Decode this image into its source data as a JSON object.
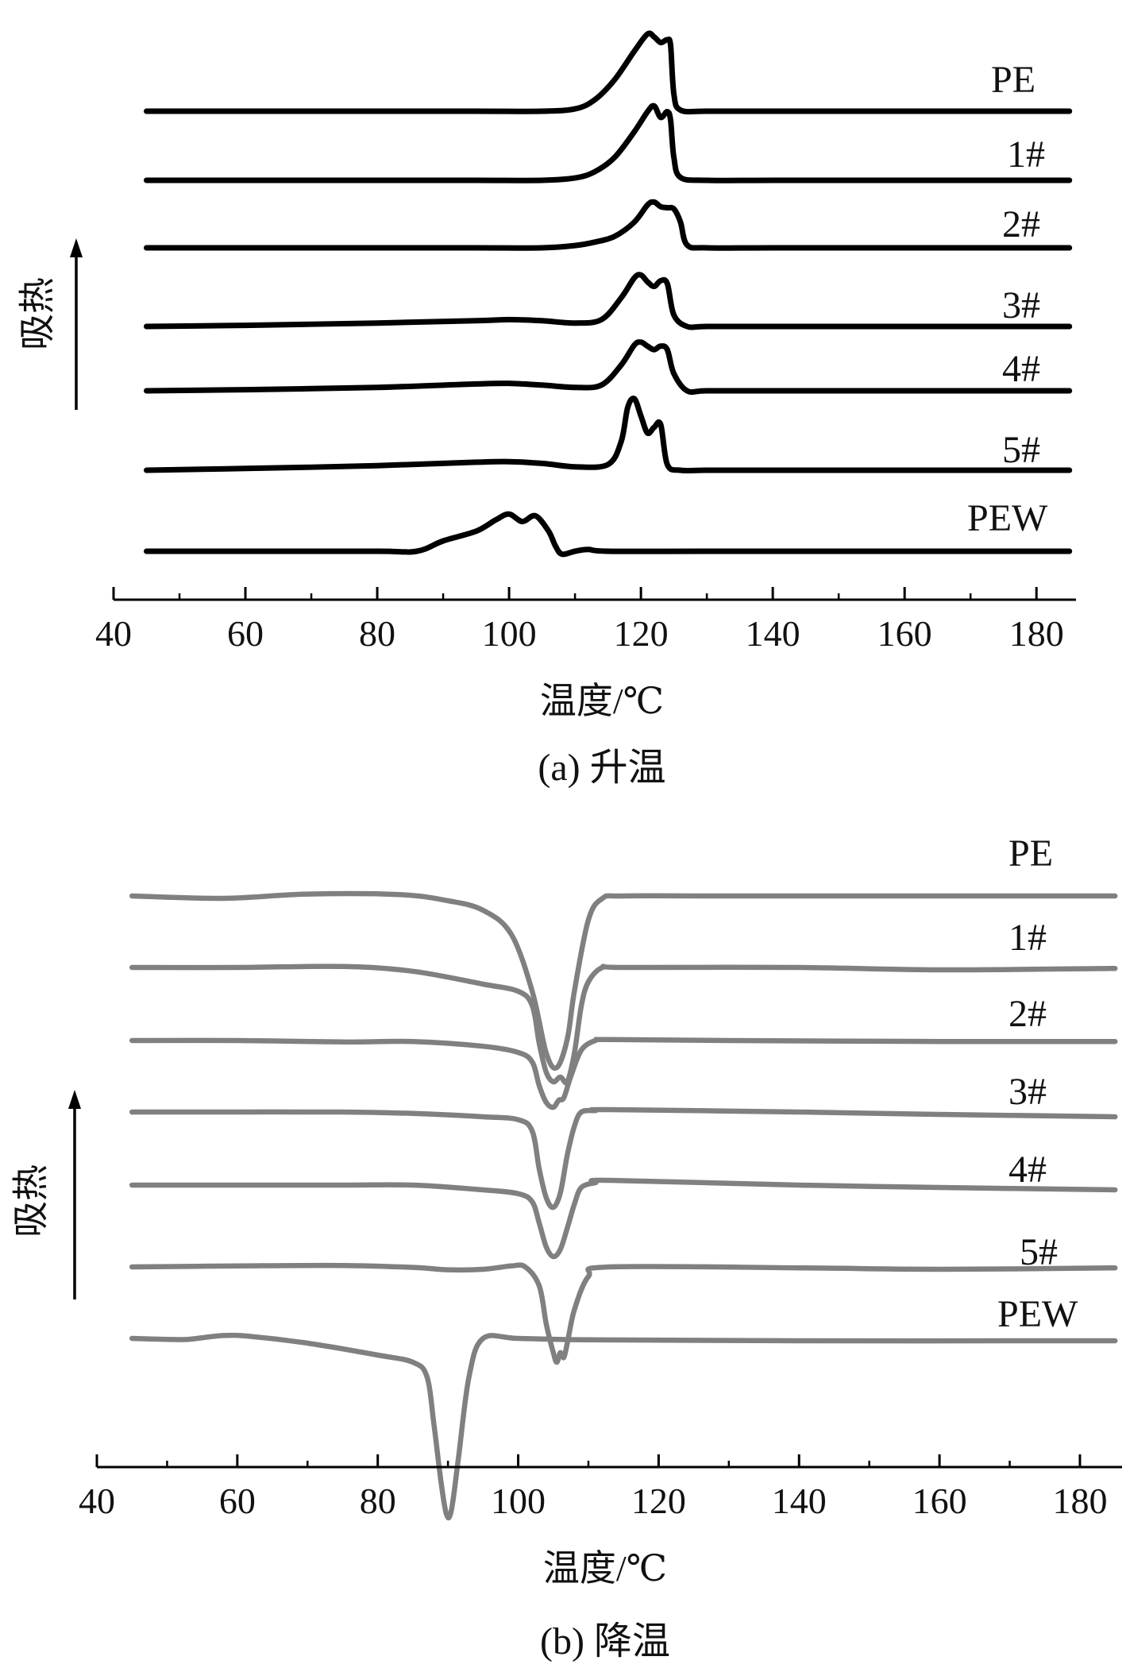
{
  "chart_data": [
    {
      "type": "line",
      "panel": "a",
      "caption": "(a) 升温",
      "xlabel": "温度/℃",
      "ylabel": "吸热",
      "xlim": [
        40,
        186
      ],
      "xticks": [
        40,
        60,
        80,
        100,
        120,
        140,
        160,
        180
      ],
      "color": "#000000",
      "series": [
        {
          "name": "PE",
          "x": [
            45,
            60,
            80,
            95,
            105,
            110,
            113,
            116,
            119,
            121,
            122,
            123,
            124,
            124.5,
            125,
            126,
            130,
            140,
            160,
            185
          ],
          "y": [
            0,
            0,
            0,
            0,
            0,
            0.04,
            0.2,
            0.55,
            1.05,
            1.35,
            1.3,
            1.2,
            1.25,
            1.15,
            0.3,
            0.02,
            0,
            0,
            0,
            0
          ]
        },
        {
          "name": "1#",
          "x": [
            45,
            60,
            80,
            95,
            105,
            110,
            113,
            116,
            119,
            121,
            122,
            123,
            124,
            124.5,
            125,
            126,
            130,
            140,
            160,
            185
          ],
          "y": [
            0,
            0,
            0,
            0,
            0,
            0.04,
            0.15,
            0.4,
            0.85,
            1.2,
            1.3,
            1.1,
            1.2,
            1.05,
            0.4,
            0.05,
            0,
            0,
            0,
            0
          ]
        },
        {
          "name": "2#",
          "x": [
            45,
            60,
            80,
            95,
            105,
            110,
            113,
            116,
            119,
            121,
            122,
            123,
            124,
            125,
            126,
            127,
            130,
            140,
            160,
            185
          ],
          "y": [
            0,
            0,
            0,
            0,
            0,
            0.04,
            0.1,
            0.2,
            0.45,
            0.75,
            0.8,
            0.72,
            0.7,
            0.68,
            0.45,
            0.05,
            0,
            0,
            0,
            0
          ]
        },
        {
          "name": "3#",
          "x": [
            45,
            60,
            80,
            95,
            100,
            105,
            110,
            114,
            117,
            119,
            120,
            121,
            122,
            123,
            124,
            125,
            127,
            130,
            140,
            160,
            185
          ],
          "y": [
            0,
            0.02,
            0.06,
            0.1,
            0.12,
            0.1,
            0.06,
            0.12,
            0.5,
            0.85,
            0.9,
            0.78,
            0.7,
            0.8,
            0.75,
            0.2,
            0,
            0,
            0,
            0,
            0
          ]
        },
        {
          "name": "4#",
          "x": [
            45,
            60,
            80,
            95,
            100,
            105,
            110,
            114,
            117,
            119,
            120,
            121,
            122,
            123,
            124,
            125,
            127,
            130,
            140,
            160,
            185
          ],
          "y": [
            0,
            0.02,
            0.06,
            0.12,
            0.13,
            0.1,
            0.06,
            0.1,
            0.45,
            0.8,
            0.85,
            0.78,
            0.72,
            0.78,
            0.72,
            0.3,
            0,
            0,
            0,
            0,
            0
          ]
        },
        {
          "name": "5#",
          "x": [
            45,
            60,
            80,
            95,
            100,
            105,
            110,
            115,
            117,
            118,
            119,
            120,
            121,
            122,
            123,
            124,
            126,
            130,
            140,
            160,
            185
          ],
          "y": [
            0,
            0.03,
            0.08,
            0.14,
            0.15,
            0.12,
            0.06,
            0.1,
            0.5,
            1.1,
            1.25,
            0.95,
            0.65,
            0.75,
            0.8,
            0.1,
            0,
            0,
            0,
            0,
            0
          ]
        },
        {
          "name": "PEW",
          "x": [
            45,
            60,
            80,
            86,
            90,
            95,
            98,
            100,
            102,
            104,
            106,
            107,
            108,
            110,
            112,
            115,
            130,
            160,
            185
          ],
          "y": [
            0,
            0,
            0,
            0,
            0.18,
            0.35,
            0.55,
            0.65,
            0.52,
            0.62,
            0.35,
            0.1,
            -0.05,
            0,
            0.03,
            0,
            0,
            0,
            0
          ]
        }
      ]
    },
    {
      "type": "line",
      "panel": "b",
      "caption": "(b) 降温",
      "xlabel": "温度/℃",
      "ylabel": "吸热",
      "xlim": [
        40,
        186
      ],
      "xticks": [
        40,
        60,
        80,
        100,
        120,
        140,
        160,
        180
      ],
      "color": "#808080",
      "series": [
        {
          "name": "PE",
          "x": [
            45,
            58,
            70,
            83,
            90,
            95,
            99,
            102,
            104,
            105.5,
            107,
            108,
            110,
            112,
            115,
            130,
            160,
            185
          ],
          "y": [
            0,
            -0.05,
            0.04,
            0.03,
            -0.1,
            -0.3,
            -0.8,
            -2.0,
            -3.3,
            -3.6,
            -3.0,
            -2.0,
            -0.5,
            -0.05,
            0,
            0,
            0,
            0
          ]
        },
        {
          "name": "1#",
          "x": [
            45,
            60,
            75,
            85,
            95,
            100,
            102,
            103,
            104,
            105,
            106,
            107,
            108,
            109,
            110,
            112,
            115,
            140,
            160,
            185
          ],
          "y": [
            0,
            0,
            0.02,
            -0.08,
            -0.35,
            -0.5,
            -0.8,
            -1.6,
            -2.2,
            -2.4,
            -2.3,
            -2.4,
            -1.8,
            -0.8,
            -0.3,
            0,
            0,
            0,
            -0.05,
            -0.02
          ]
        },
        {
          "name": "2#",
          "x": [
            45,
            60,
            75,
            85,
            95,
            100,
            102,
            103,
            104,
            105,
            105.8,
            106.5,
            107.5,
            109,
            111,
            113,
            130,
            160,
            185
          ],
          "y": [
            0,
            0,
            -0.03,
            -0.02,
            -0.12,
            -0.25,
            -0.45,
            -0.95,
            -1.3,
            -1.4,
            -1.25,
            -1.2,
            -0.75,
            -0.2,
            0,
            0.02,
            0,
            -0.02,
            -0.02
          ]
        },
        {
          "name": "3#",
          "x": [
            45,
            60,
            75,
            85,
            95,
            100,
            102,
            103,
            104,
            105,
            106,
            107,
            108,
            109,
            111,
            113,
            140,
            160,
            185
          ],
          "y": [
            0,
            0,
            0,
            -0.03,
            -0.1,
            -0.16,
            -0.4,
            -1.2,
            -1.8,
            -2.0,
            -1.7,
            -0.9,
            -0.3,
            0,
            0.03,
            0.05,
            0,
            -0.05,
            -0.1
          ]
        },
        {
          "name": "4#",
          "x": [
            45,
            60,
            75,
            85,
            95,
            100,
            102,
            103,
            104,
            105,
            106,
            107,
            108,
            109,
            111,
            113,
            140,
            160,
            185
          ],
          "y": [
            0,
            0,
            0,
            0,
            -0.1,
            -0.18,
            -0.35,
            -0.8,
            -1.3,
            -1.5,
            -1.35,
            -0.9,
            -0.4,
            -0.05,
            0.05,
            0.1,
            0,
            -0.05,
            -0.1
          ]
        },
        {
          "name": "5#",
          "x": [
            45,
            60,
            75,
            85,
            90,
            95,
            99,
            101,
            103,
            104,
            105,
            105.5,
            106,
            106.5,
            107,
            108,
            110,
            113,
            140,
            160,
            185
          ],
          "y": [
            0,
            0.02,
            0.03,
            -0.01,
            -0.06,
            -0.05,
            0.02,
            0,
            -0.4,
            -1.2,
            -1.8,
            -2.0,
            -1.8,
            -1.9,
            -1.6,
            -0.9,
            -0.2,
            0,
            -0.02,
            -0.05,
            -0.02
          ]
        },
        {
          "name": "PEW",
          "x": [
            45,
            50,
            53,
            58,
            62,
            70,
            80,
            85,
            87,
            88,
            89,
            89.8,
            90.5,
            91.5,
            93,
            95,
            100,
            110,
            140,
            185
          ],
          "y": [
            0,
            -0.02,
            -0.02,
            0.06,
            0.04,
            -0.1,
            -0.35,
            -0.5,
            -0.8,
            -1.8,
            -3.0,
            -3.7,
            -3.6,
            -2.5,
            -0.8,
            0,
            0,
            -0.03,
            -0.05,
            -0.05
          ]
        }
      ]
    }
  ]
}
